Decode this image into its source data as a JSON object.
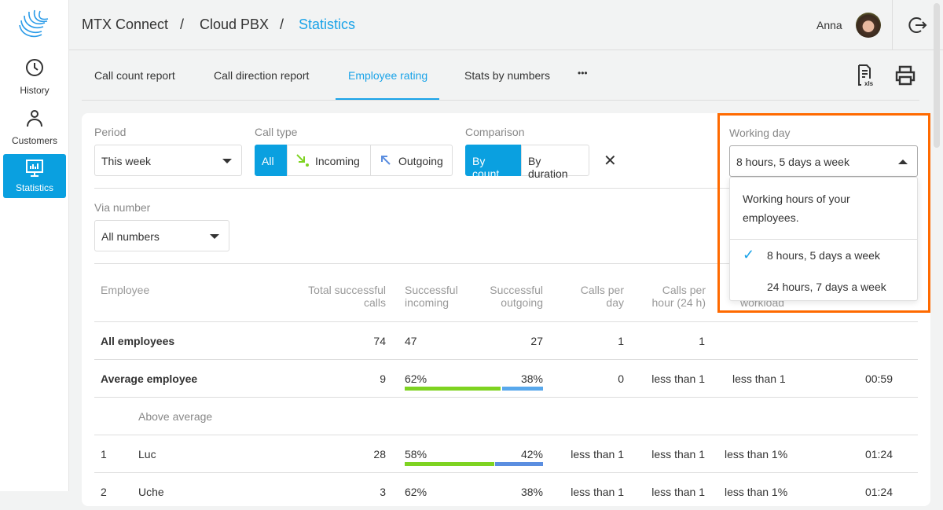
{
  "sidebar": {
    "items": [
      {
        "label": "History",
        "icon": "clock-icon"
      },
      {
        "label": "Customers",
        "icon": "person-icon"
      },
      {
        "label": "Statistics",
        "icon": "monitor-chart-icon",
        "active": true
      }
    ]
  },
  "header": {
    "breadcrumb": [
      "MTX Connect",
      "Cloud PBX",
      "Statistics"
    ],
    "separator": "/",
    "user": "Anna"
  },
  "tabs": [
    {
      "label": "Call count report"
    },
    {
      "label": "Call direction report"
    },
    {
      "label": "Employee rating",
      "active": true
    },
    {
      "label": "Stats by numbers"
    },
    {
      "label": "•••"
    }
  ],
  "filters": {
    "period": {
      "label": "Period",
      "value": "This week"
    },
    "call_type": {
      "label": "Call type",
      "options": [
        "All",
        "Incoming",
        "Outgoing"
      ],
      "selected": "All"
    },
    "comparison": {
      "label": "Comparison",
      "options": [
        "By count",
        "By duration"
      ],
      "selected": "By count"
    },
    "clear": "✕",
    "via_number": {
      "label": "Via number",
      "value": "All numbers"
    },
    "working_day": {
      "label": "Working day",
      "value": "8 hours, 5 days a week",
      "hint": "Working hours of your employees.",
      "options": [
        "8 hours, 5 days a week",
        "24 hours, 7 days a week"
      ],
      "check": "✓"
    }
  },
  "table": {
    "headers": {
      "employee": "Employee",
      "total": "Total successful calls",
      "incoming": "Successful incoming",
      "outgoing": "Successful outgoing",
      "per_day": "Calls per day",
      "per_hour": "Calls per hour (24 h)",
      "workload": "workload"
    },
    "all": {
      "name": "All employees",
      "total": "74",
      "incoming": "47",
      "outgoing": "27",
      "per_day": "1",
      "per_hour": "1"
    },
    "avg": {
      "name": "Average employee",
      "total": "9",
      "in_pct": "62%",
      "out_pct": "38%",
      "per_day": "0",
      "per_hour": "less than 1",
      "workload": "less than 1",
      "time": "00:59"
    },
    "group": "Above average",
    "rows": [
      {
        "rank": "1",
        "name": "Luc",
        "total": "28",
        "in_pct": "58%",
        "out_pct": "42%",
        "per_day": "less than 1",
        "per_hour": "less than 1",
        "workload": "less than 1%",
        "time": "01:24"
      },
      {
        "rank": "2",
        "name": "Uche",
        "total": "3",
        "in_pct": "62%",
        "out_pct": "38%",
        "per_day": "less than 1",
        "per_hour": "less than 1",
        "workload": "less than 1%",
        "time": "01:24"
      }
    ]
  },
  "colors": {
    "accent": "#0aa0e0",
    "incoming": "#7ed321",
    "outgoing": "#5b8ee0",
    "highlight": "#ff6a00"
  }
}
